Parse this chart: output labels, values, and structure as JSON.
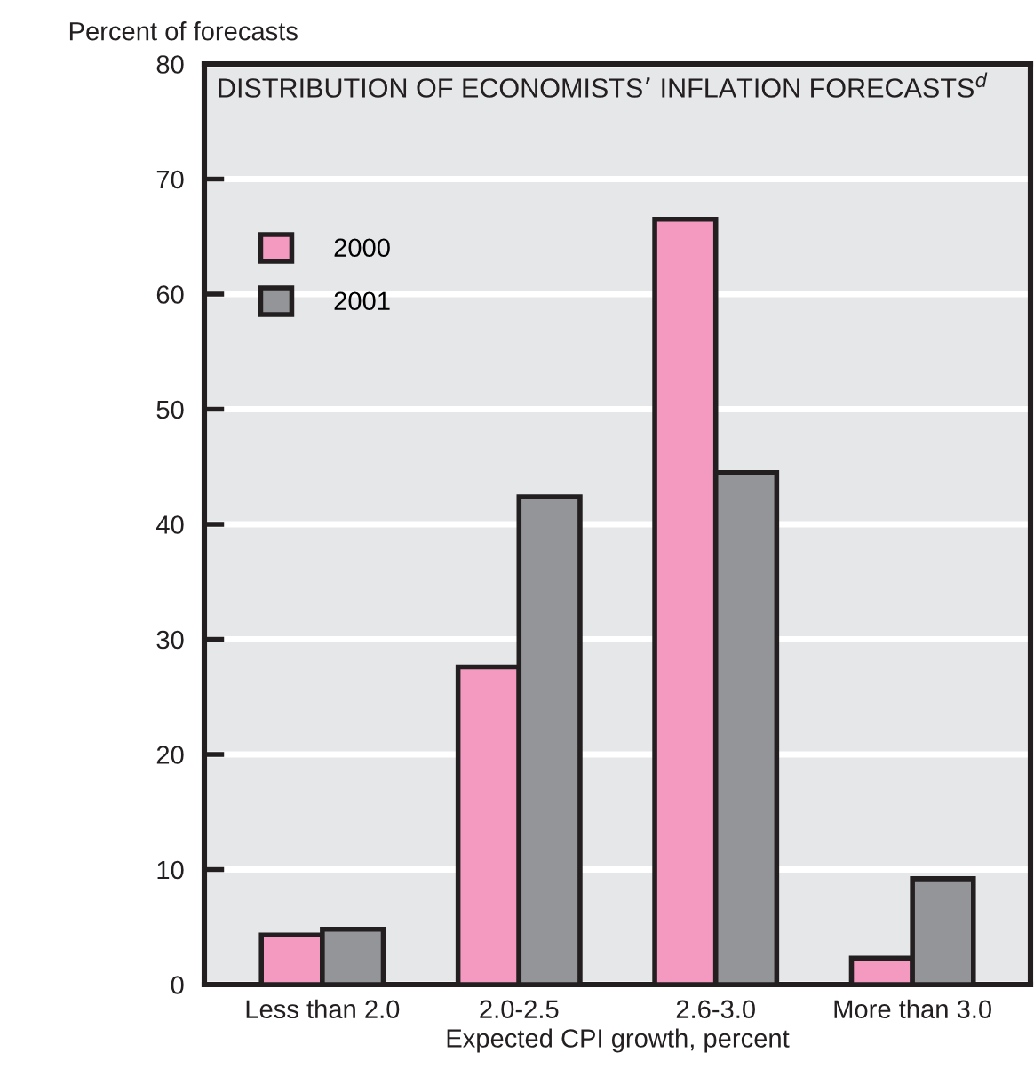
{
  "chart_data": {
    "type": "bar",
    "title": "DISTRIBUTION OF ECONOMISTS’ INFLATION FORECASTS$^{d}$",
    "ylabel": "Percent of forecasts",
    "xlabel": "Expected CPI growth, percent",
    "categories": [
      "Less than 2.0",
      "2.0-2.5",
      "2.6-3.0",
      "More than 3.0"
    ],
    "series": [
      {
        "name": "2000",
        "color": "#f49ac1",
        "values": [
          4.3,
          27.6,
          66.5,
          2.3
        ]
      },
      {
        "name": "2001",
        "color": "#939598",
        "values": [
          4.8,
          42.4,
          44.5,
          9.2
        ]
      }
    ],
    "ylim": [
      0,
      80
    ],
    "yticks": [
      0,
      10,
      20,
      30,
      40,
      50,
      60,
      70,
      80
    ],
    "grid": "y",
    "legend": "top left"
  }
}
